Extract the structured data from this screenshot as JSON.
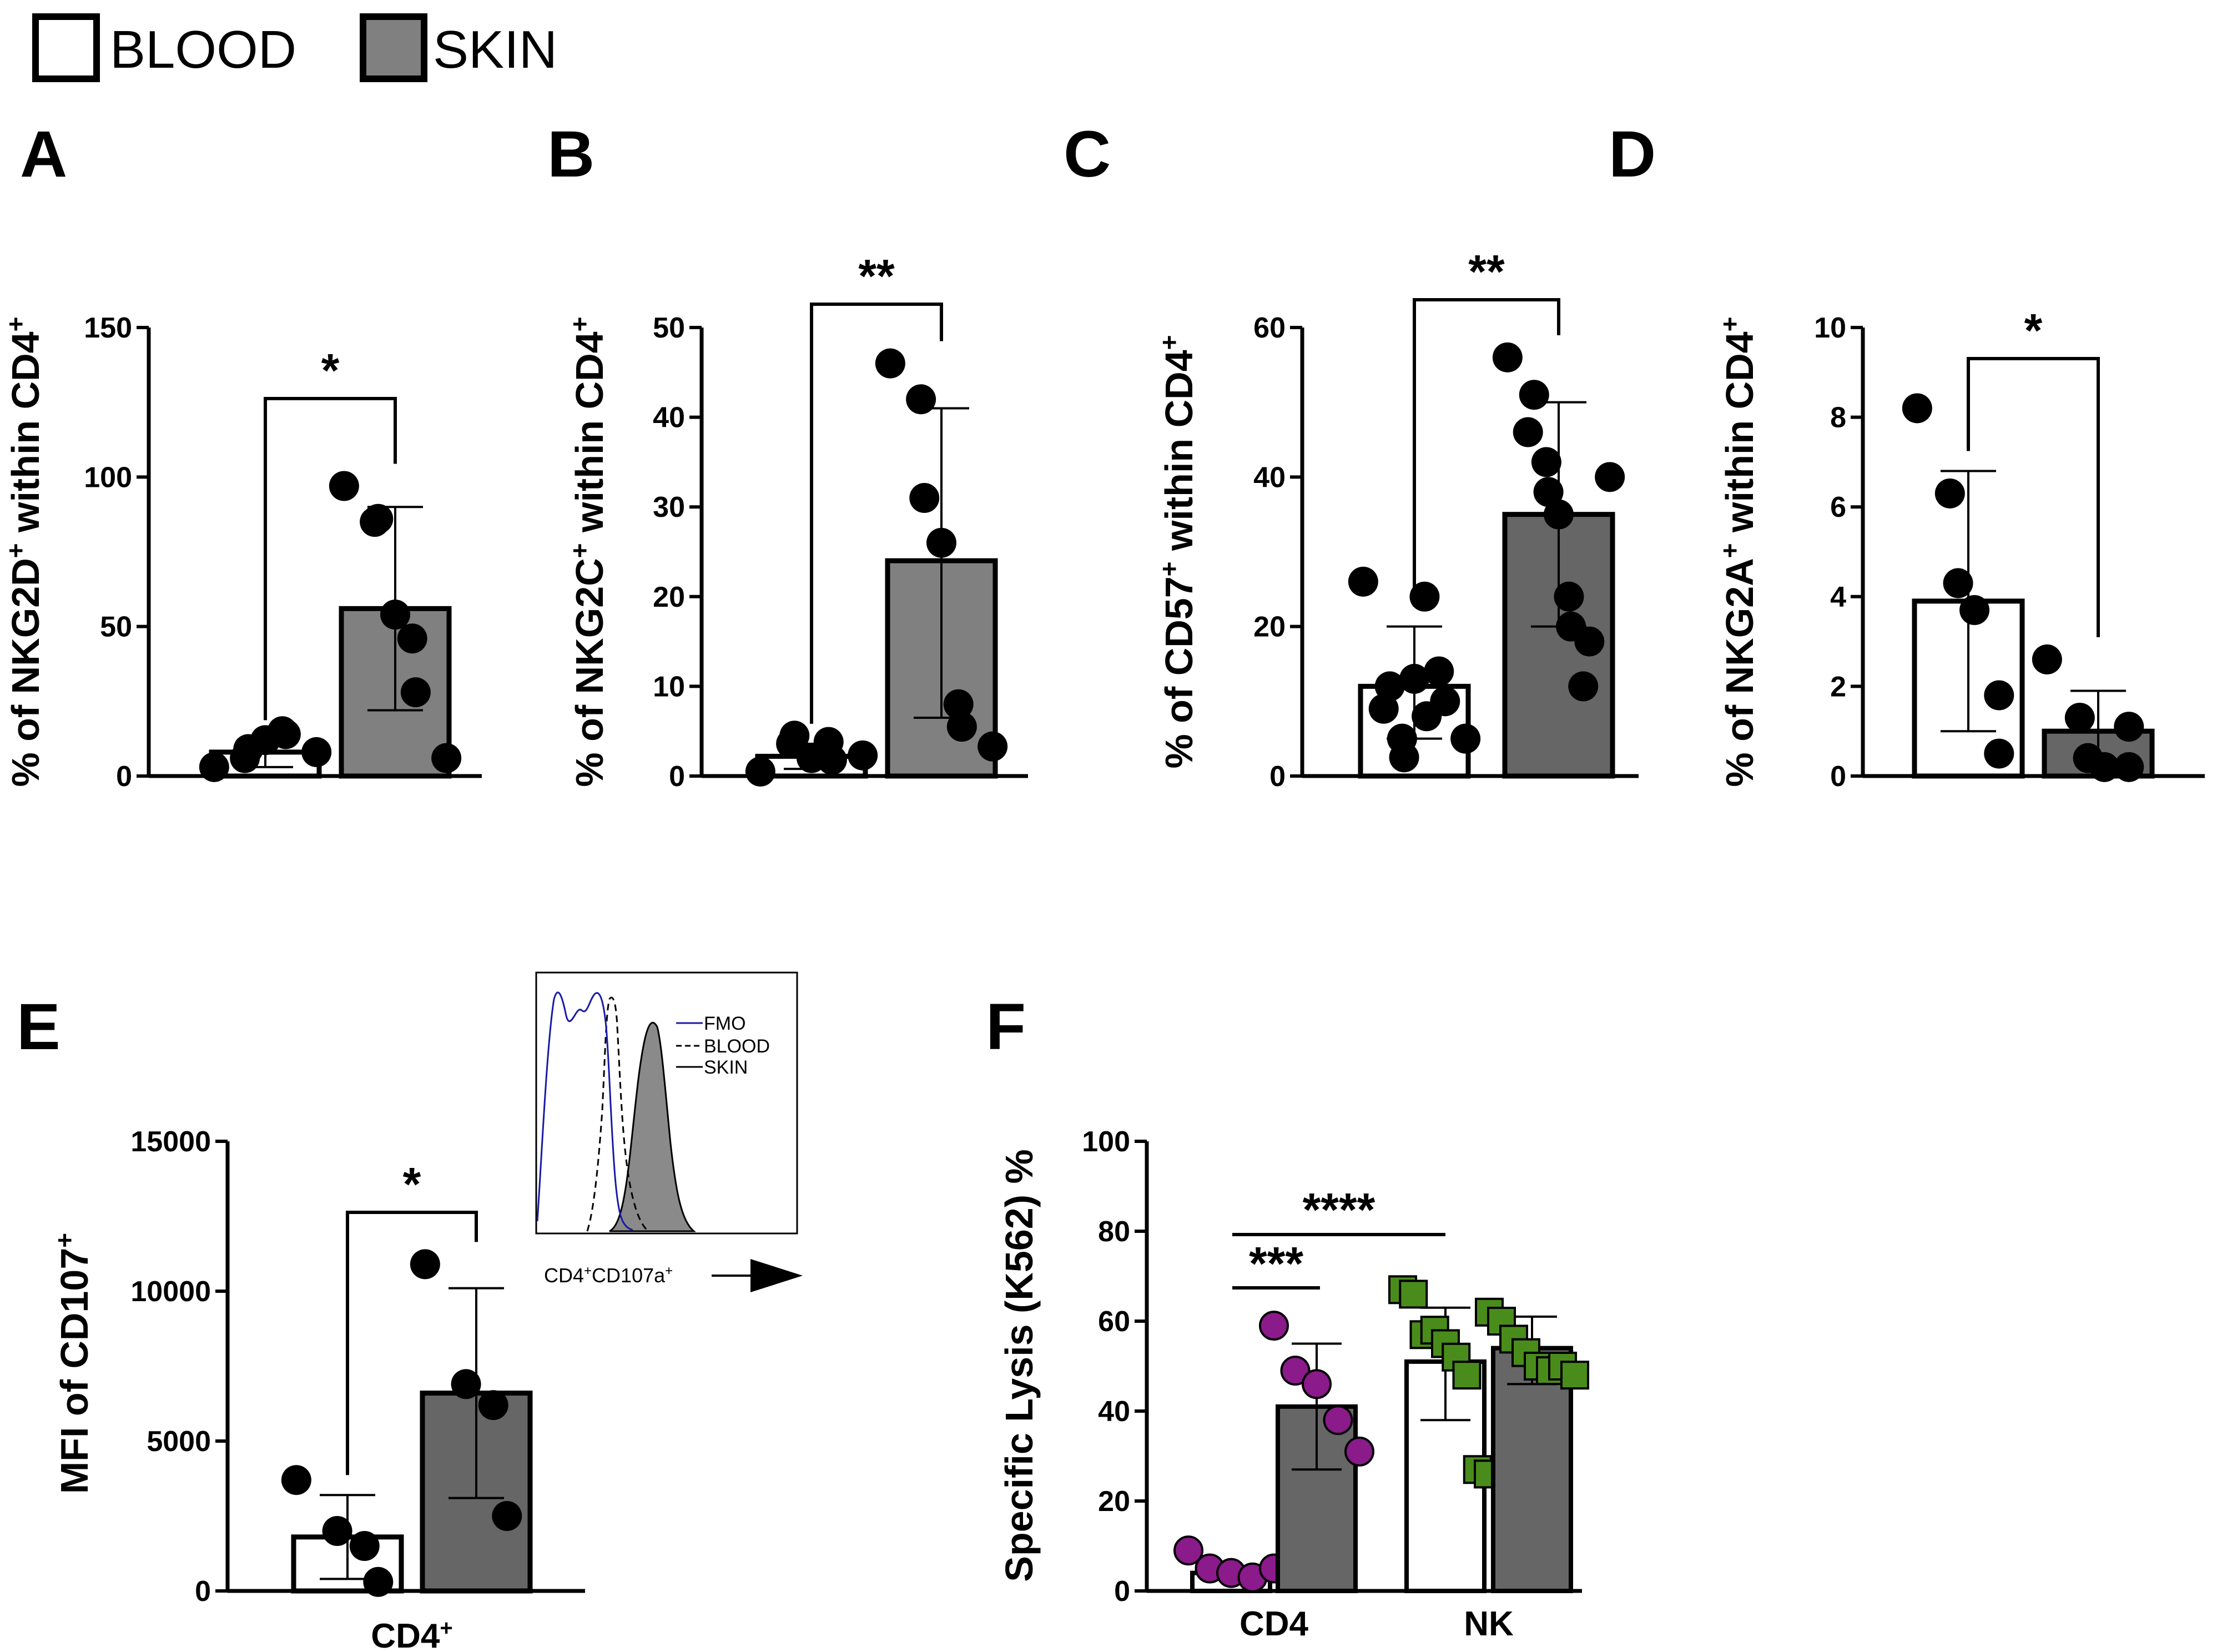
{
  "legend": {
    "items": [
      {
        "label": "BLOOD",
        "fill": "#ffffff"
      },
      {
        "label": "SKIN",
        "fill": "#808080"
      }
    ]
  },
  "colors": {
    "blood_fill": "#ffffff",
    "skin_fill_light": "#808080",
    "skin_fill_dark": "#666666",
    "cd4_points": "#8B1A8B",
    "nk_points": "#4A8C1C",
    "fmo_line": "#1a1aa6"
  },
  "chart_data": [
    {
      "panel": "A",
      "type": "bar",
      "ylabel_parts": {
        "pre": "% of NKG2D",
        "sup": "+",
        "post": " within CD4",
        "sup2": "+"
      },
      "ylim": [
        0,
        150
      ],
      "ticks": [
        "0",
        "50",
        "100",
        "150"
      ],
      "tick_values": [
        0,
        50,
        100,
        150
      ],
      "significance": "*",
      "skin_fill": "#808080",
      "bars": [
        {
          "group": "BLOOD",
          "mean": 8,
          "sd_low": 3,
          "sd_high": 12,
          "points": [
            3,
            6,
            9,
            12,
            15,
            14,
            8
          ]
        },
        {
          "group": "SKIN",
          "mean": 56,
          "sd_low": 22,
          "sd_high": 90,
          "points": [
            97,
            85,
            86,
            54,
            46,
            28,
            6
          ]
        }
      ]
    },
    {
      "panel": "B",
      "type": "bar",
      "ylabel_parts": {
        "pre": "% of NKG2C",
        "sup": "+",
        "post": " within CD4",
        "sup2": "+"
      },
      "ylim": [
        0,
        50
      ],
      "ticks": [
        "0",
        "10",
        "20",
        "30",
        "40",
        "50"
      ],
      "tick_values": [
        0,
        10,
        20,
        30,
        40,
        50
      ],
      "significance": "**",
      "skin_fill": "#808080",
      "bars": [
        {
          "group": "BLOOD",
          "mean": 2.2,
          "sd_low": 0.8,
          "sd_high": 3.6,
          "points": [
            0.5,
            3.6,
            4.5,
            2.0,
            3.8,
            1.8,
            2.3
          ]
        },
        {
          "group": "SKIN",
          "mean": 24,
          "sd_low": 6.5,
          "sd_high": 41,
          "points": [
            46,
            42,
            31,
            26,
            8,
            5.5,
            3.3
          ]
        }
      ]
    },
    {
      "panel": "C",
      "type": "bar",
      "ylabel_parts": {
        "pre": "% of CD57",
        "sup": "+",
        "post": " within CD4",
        "sup2": "+"
      },
      "ylim": [
        0,
        60
      ],
      "ticks": [
        "0",
        "20",
        "40",
        "60"
      ],
      "tick_values": [
        0,
        20,
        40,
        60
      ],
      "significance": "**",
      "skin_fill": "#666666",
      "bars": [
        {
          "group": "BLOOD",
          "mean": 12,
          "sd_low": 5,
          "sd_high": 20,
          "points": [
            26,
            12,
            9,
            5,
            2.5,
            13,
            24,
            8,
            10,
            14,
            5
          ]
        },
        {
          "group": "SKIN",
          "mean": 35,
          "sd_low": 20,
          "sd_high": 50,
          "points": [
            56,
            51,
            46,
            42,
            38,
            35,
            24,
            20,
            18,
            12,
            40
          ]
        }
      ]
    },
    {
      "panel": "D",
      "type": "bar",
      "ylabel_parts": {
        "pre": "% of NKG2A",
        "sup": "+",
        "post": " within CD4",
        "sup2": "+"
      },
      "ylim": [
        0,
        10
      ],
      "ticks": [
        "0",
        "2",
        "4",
        "6",
        "8",
        "10"
      ],
      "tick_values": [
        0,
        2,
        4,
        6,
        8,
        10
      ],
      "significance": "*",
      "skin_fill": "#666666",
      "bars": [
        {
          "group": "BLOOD",
          "mean": 3.9,
          "sd_low": 1.0,
          "sd_high": 6.8,
          "points": [
            8.2,
            6.3,
            4.3,
            3.7,
            1.8,
            0.5
          ]
        },
        {
          "group": "SKIN",
          "mean": 1.0,
          "sd_low": 0.0,
          "sd_high": 1.9,
          "points": [
            2.6,
            1.3,
            0.4,
            0.2,
            0.2,
            1.1
          ]
        }
      ]
    },
    {
      "panel": "E",
      "type": "bar",
      "ylabel_parts": {
        "pre": "MFI of CD107",
        "sup": "+",
        "post": "",
        "sup2": ""
      },
      "ylim": [
        0,
        15000
      ],
      "ticks": [
        "0",
        "5000",
        "10000",
        "15000"
      ],
      "tick_values": [
        0,
        5000,
        10000,
        15000
      ],
      "significance": "*",
      "skin_fill": "#666666",
      "xlabel": {
        "text": "CD4",
        "sup": "+"
      },
      "bars": [
        {
          "group": "BLOOD",
          "mean": 1800,
          "sd_low": 400,
          "sd_high": 3200,
          "points": [
            3700,
            2000,
            1500,
            300
          ]
        },
        {
          "group": "SKIN",
          "mean": 6600,
          "sd_low": 3100,
          "sd_high": 10100,
          "points": [
            10900,
            6900,
            6200,
            2500
          ]
        }
      ]
    },
    {
      "panel": "F",
      "type": "bar",
      "ylabel": "Specific Lysis (K562) %",
      "ylim": [
        0,
        100
      ],
      "ticks": [
        "0",
        "20",
        "40",
        "60",
        "80",
        "100"
      ],
      "tick_values": [
        0,
        20,
        40,
        60,
        80,
        100
      ],
      "categories": [
        "CD4",
        "NK"
      ],
      "significance": [
        {
          "text": "***",
          "from": "CD4-BLOOD",
          "to": "CD4-SKIN"
        },
        {
          "text": "****",
          "from": "CD4-BLOOD",
          "to": "NK-BLOOD"
        }
      ],
      "skin_fill": "#666666",
      "series": [
        {
          "category": "CD4",
          "group": "BLOOD",
          "mean": 4,
          "sd_low": 3,
          "sd_high": 5,
          "marker": "circle",
          "points": [
            9,
            5,
            4,
            3,
            5
          ]
        },
        {
          "category": "CD4",
          "group": "SKIN",
          "mean": 41,
          "sd_low": 27,
          "sd_high": 55,
          "marker": "circle",
          "points": [
            59,
            49,
            46,
            38,
            31
          ]
        },
        {
          "category": "NK",
          "group": "BLOOD",
          "mean": 51,
          "sd_low": 38,
          "sd_high": 63,
          "marker": "square",
          "points": [
            67,
            66,
            57,
            58,
            55,
            52,
            48,
            27,
            26
          ]
        },
        {
          "category": "NK",
          "group": "SKIN",
          "mean": 54,
          "sd_low": 46,
          "sd_high": 61,
          "marker": "square",
          "points": [
            62,
            60,
            56,
            53,
            50,
            49,
            50,
            48
          ]
        }
      ]
    }
  ],
  "inset": {
    "legend": [
      "FMO",
      "BLOOD",
      "SKIN"
    ],
    "xlabel_parts": {
      "a": "CD4",
      "a_sup": "+",
      "b": "CD107a",
      "b_sup": "+"
    }
  }
}
